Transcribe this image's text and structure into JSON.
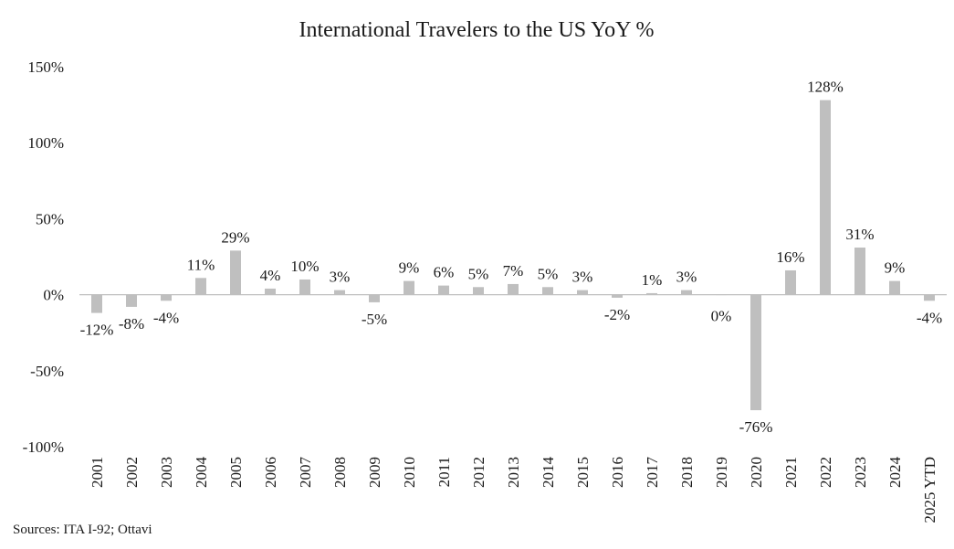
{
  "chart_data": {
    "type": "bar",
    "title": "International Travelers to the US YoY %",
    "source": "Sources: ITA I-92; Ottavi",
    "xlabel": "",
    "ylabel": "",
    "ylim": [
      -100,
      150
    ],
    "yticks": [
      150,
      100,
      50,
      0,
      -50,
      -100
    ],
    "ytick_labels": [
      "150%",
      "100%",
      "50%",
      "0%",
      "-50%",
      "-100%"
    ],
    "categories": [
      "2001",
      "2002",
      "2003",
      "2004",
      "2005",
      "2006",
      "2007",
      "2008",
      "2009",
      "2010",
      "2011",
      "2012",
      "2013",
      "2014",
      "2015",
      "2016",
      "2017",
      "2018",
      "2019",
      "2020",
      "2021",
      "2022",
      "2023",
      "2024",
      "2025 YTD"
    ],
    "values": [
      -12,
      -8,
      -4,
      11,
      29,
      4,
      10,
      3,
      -5,
      9,
      6,
      5,
      7,
      5,
      3,
      -2,
      1,
      3,
      0,
      -76,
      16,
      128,
      31,
      9,
      -4
    ],
    "data_labels": [
      "-12%",
      "-8%",
      "-4%",
      "11%",
      "29%",
      "4%",
      "10%",
      "3%",
      "-5%",
      "9%",
      "6%",
      "5%",
      "7%",
      "5%",
      "3%",
      "-2%",
      "1%",
      "3%",
      "0%",
      "-76%",
      "16%",
      "128%",
      "31%",
      "9%",
      "-4%"
    ],
    "grid": false,
    "legend": "none",
    "bar_color": "#bfbfbf",
    "axis_color": "#bfbfbf"
  }
}
